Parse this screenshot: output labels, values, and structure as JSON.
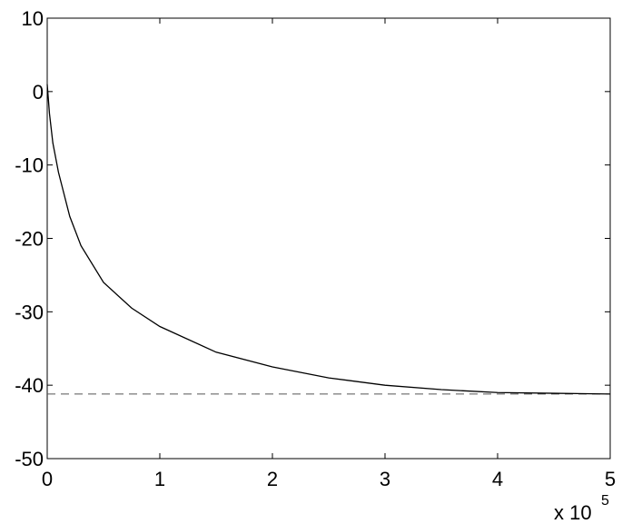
{
  "chart_data": {
    "type": "line",
    "x_multiplier": "x 10",
    "x_exponent": "5",
    "x": [
      0,
      0.02,
      0.05,
      0.1,
      0.2,
      0.3,
      0.5,
      0.75,
      1,
      1.5,
      2,
      2.5,
      3,
      3.5,
      4,
      4.5,
      5
    ],
    "series": [
      {
        "color": "#000000",
        "values": [
          1,
          -3,
          -7,
          -11,
          -17,
          -21,
          -26,
          -29.5,
          -32,
          -35.5,
          -37.5,
          -39,
          -40,
          -40.6,
          -41,
          -41.1,
          -41.2
        ]
      }
    ],
    "reference_line": {
      "value": -41.2,
      "color": "#555555"
    },
    "xlim": [
      0,
      5
    ],
    "xticks": [
      0,
      1,
      2,
      3,
      4,
      5
    ],
    "ylim": [
      -50,
      10
    ],
    "yticks": [
      -50,
      -40,
      -30,
      -20,
      -10,
      0,
      10
    ]
  }
}
